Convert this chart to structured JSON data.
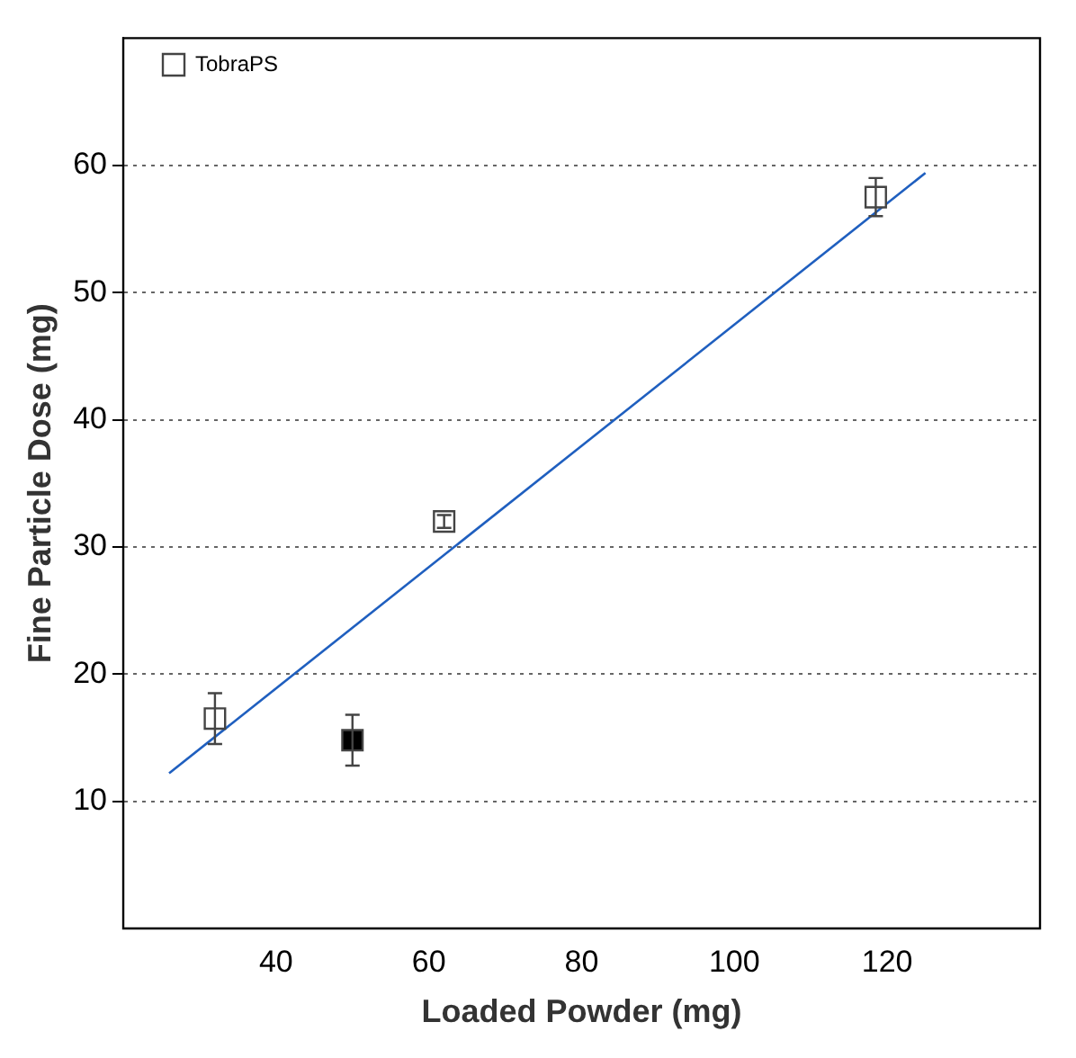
{
  "chart_data": {
    "type": "scatter",
    "xlabel": "Loaded Powder (mg)",
    "ylabel": "Fine Particle Dose (mg)",
    "xlim": [
      20,
      140
    ],
    "xticks": [
      40,
      60,
      80,
      100,
      120
    ],
    "ylim": [
      0,
      70
    ],
    "yticks": [
      10,
      20,
      30,
      40,
      50,
      60
    ],
    "grid": "y",
    "legend": "top left",
    "series": [
      {
        "name": "TobraPS",
        "color": "#ffffff",
        "marker": "square",
        "x": [
          32,
          62,
          118.5
        ],
        "values": [
          16.5,
          32,
          57.5
        ],
        "errors": [
          2,
          0.5,
          1.5
        ]
      },
      {
        "color": "#000000",
        "marker": "square",
        "x": [
          50
        ],
        "values": [
          14.8
        ],
        "errors": [
          2
        ]
      },
      {
        "type": "line",
        "color": "#1f5fbf",
        "marker": "none",
        "line_style": "solid",
        "x": [
          26,
          125
        ],
        "values": [
          12.2,
          59.4
        ]
      }
    ]
  }
}
